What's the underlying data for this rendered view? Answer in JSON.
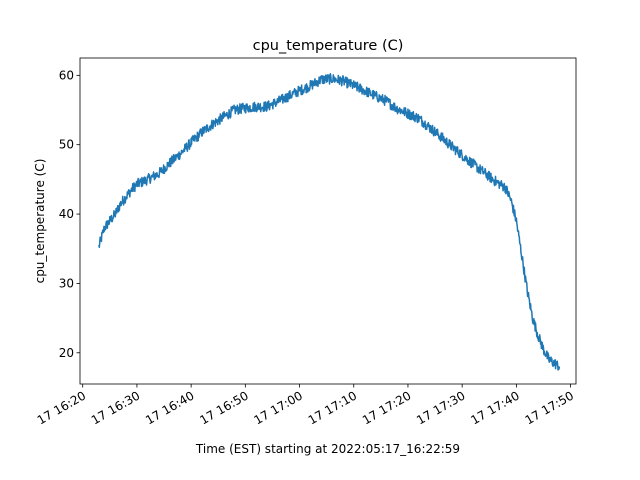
{
  "chart_data": {
    "type": "line",
    "title": "cpu_temperature (C)",
    "xlabel": "Time (EST) starting at 2022:05:17_16:22:59",
    "ylabel": "cpu_temperature (C)",
    "x_unit": "time (EST), 2022-05-17",
    "xlim": [
      "16:19:30",
      "17:51:00"
    ],
    "ylim": [
      15.5,
      62.5
    ],
    "x_ticks": [
      "16:20",
      "16:30",
      "16:40",
      "16:50",
      "17:00",
      "17:10",
      "17:20",
      "17:30",
      "17:40",
      "17:50"
    ],
    "x_tick_labels": [
      "17 16:20",
      "17 16:30",
      "17 16:40",
      "17 16:50",
      "17 17:00",
      "17 17:10",
      "17 17:20",
      "17 17:30",
      "17 17:40",
      "17 17:50"
    ],
    "y_ticks": [
      20,
      30,
      40,
      50,
      60
    ],
    "grid": false,
    "series": [
      {
        "color": "#1f77b4",
        "points": [
          [
            "16:22:59",
            35.3
          ],
          [
            "16:24:00",
            38.0
          ],
          [
            "16:25:00",
            39.0
          ],
          [
            "16:26:00",
            40.0
          ],
          [
            "16:27:00",
            41.5
          ],
          [
            "16:28:00",
            42.5
          ],
          [
            "16:29:00",
            43.5
          ],
          [
            "16:30:00",
            44.3
          ],
          [
            "16:32:00",
            45.0
          ],
          [
            "16:34:00",
            45.8
          ],
          [
            "16:36:00",
            47.3
          ],
          [
            "16:38:00",
            48.7
          ],
          [
            "16:40:00",
            50.3
          ],
          [
            "16:42:00",
            51.8
          ],
          [
            "16:44:00",
            53.0
          ],
          [
            "16:46:00",
            54.0
          ],
          [
            "16:48:00",
            55.0
          ],
          [
            "16:50:00",
            55.3
          ],
          [
            "16:52:00",
            55.5
          ],
          [
            "16:54:00",
            55.5
          ],
          [
            "16:56:00",
            56.2
          ],
          [
            "16:58:00",
            57.0
          ],
          [
            "17:00:00",
            57.8
          ],
          [
            "17:02:00",
            58.5
          ],
          [
            "17:04:00",
            59.4
          ],
          [
            "17:06:00",
            59.5
          ],
          [
            "17:08:00",
            59.2
          ],
          [
            "17:10:00",
            58.5
          ],
          [
            "17:12:00",
            57.8
          ],
          [
            "17:14:00",
            57.0
          ],
          [
            "17:16:00",
            56.3
          ],
          [
            "17:18:00",
            55.2
          ],
          [
            "17:20:00",
            54.5
          ],
          [
            "17:22:00",
            53.8
          ],
          [
            "17:24:00",
            52.5
          ],
          [
            "17:26:00",
            51.2
          ],
          [
            "17:28:00",
            49.8
          ],
          [
            "17:30:00",
            48.5
          ],
          [
            "17:32:00",
            47.2
          ],
          [
            "17:34:00",
            46.0
          ],
          [
            "17:36:00",
            44.8
          ],
          [
            "17:38:00",
            43.8
          ],
          [
            "17:39:00",
            42.0
          ],
          [
            "17:40:00",
            39.0
          ],
          [
            "17:41:00",
            34.0
          ],
          [
            "17:42:00",
            29.0
          ],
          [
            "17:43:00",
            25.0
          ],
          [
            "17:44:00",
            22.5
          ],
          [
            "17:45:00",
            20.5
          ],
          [
            "17:46:00",
            19.0
          ],
          [
            "17:47:00",
            18.5
          ],
          [
            "17:48:00",
            18.0
          ]
        ]
      }
    ]
  }
}
